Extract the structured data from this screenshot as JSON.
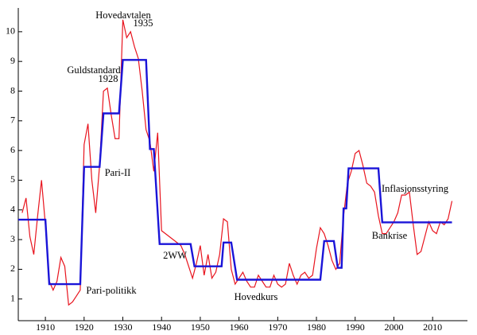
{
  "chart_data": {
    "type": "line",
    "xlim": [
      1903,
      2019
    ],
    "ylim": [
      0.27,
      10.8
    ],
    "xticks": [
      1910,
      1920,
      1930,
      1940,
      1950,
      1960,
      1970,
      1980,
      1990,
      2000,
      2010
    ],
    "yticks": [
      1,
      2,
      3,
      4,
      5,
      6,
      7,
      8,
      9,
      10
    ],
    "annotations": [
      "Hovedavtalen",
      "1935",
      "Guldstandard",
      "1928",
      "Pari-II",
      "2WW",
      "Pari-politikk",
      "Hovedkurs",
      "Bankrise",
      "Inflasjonsstyring"
    ],
    "series": [
      {
        "color": "#e8141e",
        "x": [
          1904,
          1905,
          1906,
          1907,
          1908,
          1909,
          1910,
          1911,
          1912,
          1913,
          1914,
          1915,
          1916,
          1917,
          1918,
          1919,
          1920,
          1921,
          1922,
          1923,
          1924,
          1925,
          1926,
          1927,
          1928,
          1929,
          1930,
          1931,
          1932,
          1933,
          1934,
          1935,
          1936,
          1937,
          1938,
          1939,
          1940,
          1941,
          1942,
          1943,
          1944,
          1945,
          1946,
          1947,
          1948,
          1949,
          1950,
          1951,
          1952,
          1953,
          1954,
          1955,
          1956,
          1957,
          1958,
          1959,
          1960,
          1961,
          1962,
          1963,
          1964,
          1965,
          1966,
          1967,
          1968,
          1969,
          1970,
          1971,
          1972,
          1973,
          1974,
          1975,
          1976,
          1977,
          1978,
          1979,
          1980,
          1981,
          1982,
          1983,
          1984,
          1985,
          1986,
          1987,
          1988,
          1989,
          1990,
          1991,
          1992,
          1993,
          1994,
          1995,
          1996,
          1997,
          1998,
          1999,
          2000,
          2001,
          2002,
          2003,
          2004,
          2005,
          2006,
          2007,
          2008,
          2009,
          2010,
          2011,
          2012,
          2013,
          2014,
          2015
        ],
        "values": [
          3.9,
          4.4,
          3.1,
          2.5,
          3.8,
          5.0,
          3.5,
          1.6,
          1.3,
          1.6,
          2.4,
          2.1,
          0.8,
          0.9,
          1.1,
          1.3,
          6.2,
          6.9,
          5.0,
          3.9,
          5.5,
          8.0,
          8.1,
          7.2,
          6.4,
          6.4,
          10.4,
          9.8,
          10.0,
          9.5,
          9.1,
          8.0,
          6.7,
          6.3,
          5.3,
          6.6,
          3.3,
          3.2,
          3.1,
          3.0,
          2.9,
          2.8,
          2.5,
          2.1,
          1.7,
          2.2,
          2.8,
          1.8,
          2.5,
          1.7,
          1.9,
          2.5,
          3.7,
          3.6,
          2.0,
          1.5,
          1.7,
          1.9,
          1.6,
          1.4,
          1.4,
          1.8,
          1.6,
          1.4,
          1.4,
          1.8,
          1.5,
          1.4,
          1.5,
          2.2,
          1.8,
          1.5,
          1.8,
          1.9,
          1.7,
          1.8,
          2.7,
          3.4,
          3.2,
          2.8,
          2.3,
          2.0,
          2.2,
          3.8,
          4.9,
          5.3,
          5.9,
          6.0,
          5.5,
          4.9,
          4.8,
          4.6,
          3.8,
          3.2,
          3.2,
          3.4,
          3.6,
          3.9,
          4.5,
          4.5,
          4.6,
          3.5,
          2.5,
          2.6,
          3.1,
          3.6,
          3.3,
          3.2,
          3.6,
          3.5,
          3.7,
          4.3
        ]
      },
      {
        "color": "#1a14d8",
        "x": [
          1903,
          1910,
          1911,
          1919,
          1920,
          1924,
          1925,
          1929,
          1930,
          1936,
          1937,
          1938,
          1939.5,
          1947.5,
          1948.5,
          1955.5,
          1956,
          1958,
          1959.5,
          1981,
          1982,
          1984.5,
          1985.5,
          1986.5,
          1987,
          1987.7,
          1988.3,
          1996,
          1997,
          2015
        ],
        "values": [
          3.67,
          3.67,
          1.5,
          1.5,
          5.45,
          5.45,
          7.25,
          7.25,
          9.05,
          9.05,
          6.05,
          6.05,
          2.85,
          2.85,
          2.1,
          2.1,
          2.9,
          2.9,
          1.65,
          1.65,
          2.95,
          2.95,
          2.05,
          2.05,
          4.05,
          4.05,
          5.4,
          5.4,
          3.58,
          3.58
        ]
      }
    ]
  }
}
